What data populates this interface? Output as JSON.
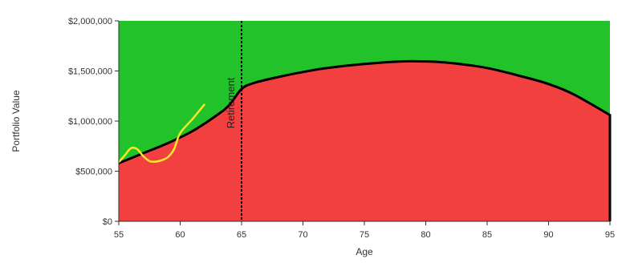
{
  "chart_data": {
    "type": "area",
    "title": "",
    "xlabel": "Age",
    "ylabel": "Portfolio Value",
    "xlim": [
      55,
      95
    ],
    "ylim": [
      0,
      2000000
    ],
    "x_ticks": [
      55,
      60,
      65,
      70,
      75,
      80,
      85,
      90,
      95
    ],
    "x_tick_labels": [
      "55",
      "60",
      "65",
      "70",
      "75",
      "80",
      "85",
      "90",
      "95"
    ],
    "y_ticks": [
      0,
      500000,
      1000000,
      1500000,
      2000000
    ],
    "y_tick_labels": [
      "$0",
      "$500,000",
      "$1,000,000",
      "$1,500,000",
      "$2,000,000"
    ],
    "grid": false,
    "legend": "none",
    "colors": {
      "area_above": "#22c22a",
      "area_below": "#f24040",
      "boundary_line": "#000000",
      "overlay_line": "#f5e829",
      "retirement_line": "#000000"
    },
    "series": [
      {
        "kind": "area",
        "x": [
          55,
          57,
          59,
          61,
          63,
          64,
          65,
          66,
          68,
          70,
          72,
          75,
          78,
          80,
          82,
          85,
          88,
          90,
          92,
          95
        ],
        "y": [
          580000,
          680000,
          780000,
          900000,
          1060000,
          1160000,
          1320000,
          1380000,
          1440000,
          1490000,
          1530000,
          1570000,
          1595000,
          1595000,
          1580000,
          1530000,
          1440000,
          1370000,
          1270000,
          1060000
        ]
      },
      {
        "kind": "line",
        "x": [
          55,
          55.5,
          56,
          56.5,
          57,
          57.5,
          58,
          58.5,
          59,
          59.5,
          60,
          61,
          62
        ],
        "y": [
          590000,
          660000,
          730000,
          720000,
          650000,
          600000,
          595000,
          610000,
          640000,
          720000,
          880000,
          1020000,
          1170000
        ]
      }
    ],
    "annotations": [
      {
        "type": "vline",
        "x": 65,
        "label": "Retirement",
        "style": "dotted"
      }
    ]
  }
}
